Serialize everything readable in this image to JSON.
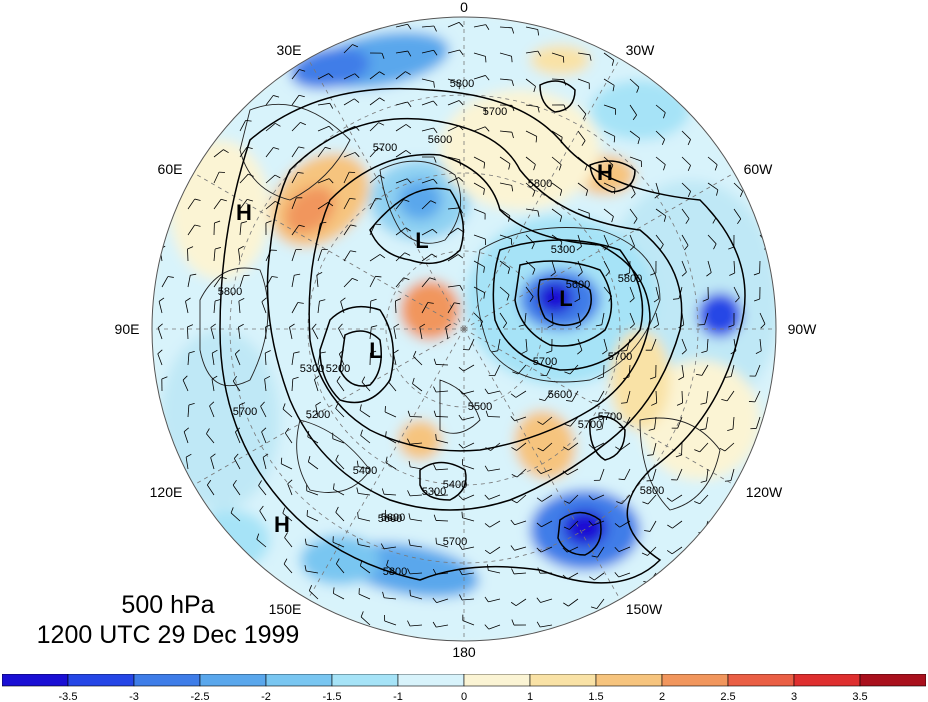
{
  "map": {
    "longitude_labels": [
      "0",
      "30W",
      "60W",
      "90W",
      "120W",
      "150W",
      "180",
      "150E",
      "120E",
      "90E",
      "60E",
      "30E"
    ],
    "centers": [
      {
        "mark": "H",
        "region": "north-atlantic"
      },
      {
        "mark": "H",
        "region": "ural-east-europe"
      },
      {
        "mark": "H",
        "region": "east-asia"
      },
      {
        "mark": "L",
        "region": "barents-kara"
      },
      {
        "mark": "L",
        "region": "central-siberia"
      },
      {
        "mark": "L",
        "region": "hudson-bay"
      }
    ],
    "contour_labels": [
      "5800",
      "5700",
      "5600",
      "5700",
      "5800",
      "5600",
      "5700",
      "5300",
      "5800",
      "5600",
      "5700",
      "5200",
      "5300",
      "5700",
      "5800",
      "5600",
      "5200",
      "5500",
      "5400",
      "5300",
      "5700",
      "5400",
      "5600",
      "5700",
      "5800",
      "5800",
      "5700"
    ],
    "colors": {
      "land_coast": "#222222",
      "contour": "#000000",
      "barb": "#000000"
    }
  },
  "caption": {
    "level": "500 hPa",
    "time": "1200 UTC 29 Dec 1999"
  },
  "colorbar": {
    "tick_labels": [
      "-3.5",
      "-3",
      "-2.5",
      "-2",
      "-1.5",
      "-1",
      "0",
      "1",
      "1.5",
      "2",
      "2.5",
      "3",
      "3.5"
    ],
    "colors": [
      "#1a0fd4",
      "#2546e6",
      "#3f7de8",
      "#5aa7ec",
      "#79c6f1",
      "#a6e3f7",
      "#d8f3fb",
      "#fbf4d4",
      "#f9e2a6",
      "#f6c47e",
      "#f1965d",
      "#ea5f45",
      "#de2f2f",
      "#a9101d"
    ]
  }
}
